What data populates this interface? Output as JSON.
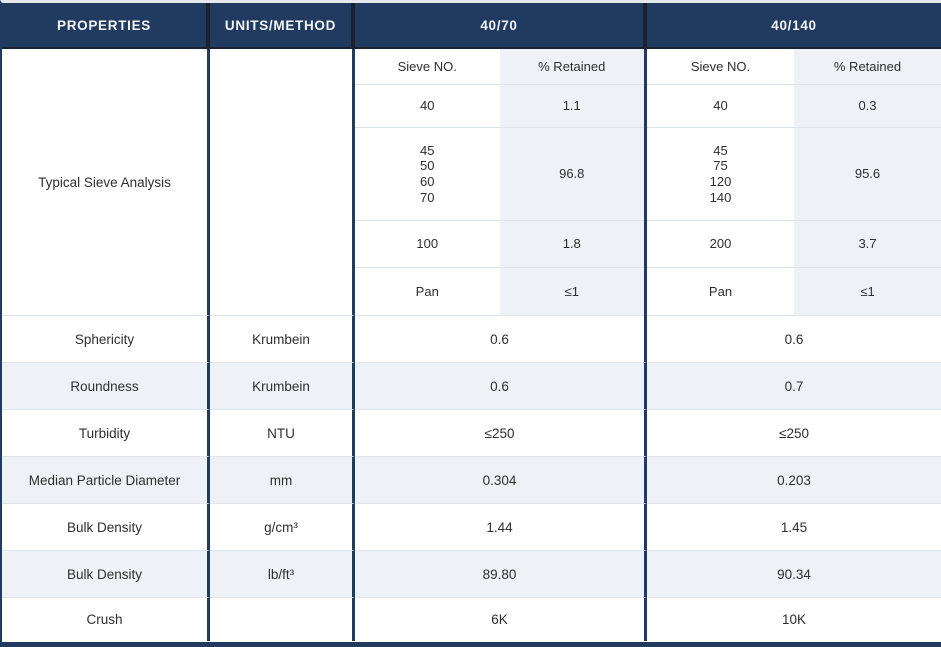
{
  "colors": {
    "header_navy": "#213a60",
    "header_divider": "#1a2230",
    "row_shade": "#eef2f7",
    "row_divider": "#dde4ec",
    "header_text": "#f3f5f8",
    "body_text": "#2e2e2e"
  },
  "table": {
    "header": {
      "properties": "PROPERTIES",
      "units_method": "UNITS/METHOD",
      "product_a": "40/70",
      "product_b": "40/140"
    },
    "sieve_analysis": {
      "label": "Typical Sieve Analysis",
      "sub_header": {
        "sieve_no": "Sieve NO.",
        "retained": "% Retained"
      },
      "product_a_rows": [
        {
          "sieve_no": "40",
          "retained": "1.1"
        },
        {
          "sieve_no": "45\n50\n60\n70",
          "retained": "96.8"
        },
        {
          "sieve_no": "100",
          "retained": "1.8"
        },
        {
          "sieve_no": "Pan",
          "retained": "≤1"
        }
      ],
      "product_b_rows": [
        {
          "sieve_no": "40",
          "retained": "0.3"
        },
        {
          "sieve_no": "45\n75\n120\n140",
          "retained": "95.6"
        },
        {
          "sieve_no": "200",
          "retained": "3.7"
        },
        {
          "sieve_no": "Pan",
          "retained": "≤1"
        }
      ]
    },
    "property_rows": [
      {
        "property": "Sphericity",
        "units": "Krumbein",
        "value_a": "0.6",
        "value_b": "0.6"
      },
      {
        "property": "Roundness",
        "units": "Krumbein",
        "value_a": "0.6",
        "value_b": "0.7"
      },
      {
        "property": "Turbidity",
        "units": "NTU",
        "value_a": "≤250",
        "value_b": "≤250"
      },
      {
        "property": "Median Particle Diameter",
        "units": "mm",
        "value_a": "0.304",
        "value_b": "0.203"
      },
      {
        "property": "Bulk Density",
        "units": "g/cm³",
        "value_a": "1.44",
        "value_b": "1.45"
      },
      {
        "property": "Bulk Density",
        "units": "lb/ft³",
        "value_a": "89.80",
        "value_b": "90.34"
      },
      {
        "property": "Crush",
        "units": "",
        "value_a": "6K",
        "value_b": "10K"
      }
    ]
  }
}
